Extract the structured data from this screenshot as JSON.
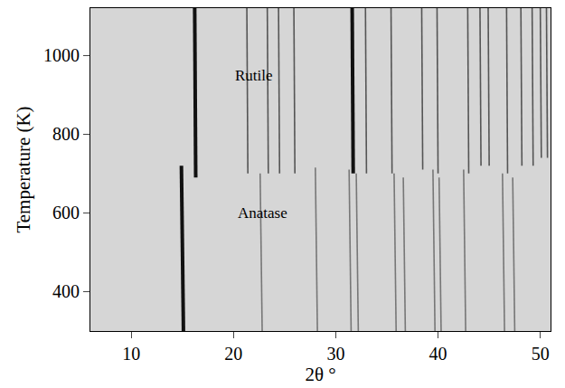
{
  "chart_data": {
    "type": "line",
    "x_label": "2θ °",
    "y_label": "Temperature (K)",
    "xlim": [
      6,
      51
    ],
    "xticks": [
      10,
      20,
      30,
      40,
      50
    ],
    "ylim": [
      300,
      1120
    ],
    "yticks": [
      400,
      600,
      800,
      1000
    ],
    "grid": false,
    "series": [
      {
        "color": "#111111",
        "line_style": "thick",
        "x": [
          15.1,
          14.9
        ],
        "values": [
          300,
          720
        ]
      },
      {
        "color": "#777777",
        "line_style": "thin",
        "x": [
          22.8,
          22.6,
          null,
          28.2,
          28.0,
          null,
          31.5,
          31.3,
          null,
          32.2,
          32.0,
          null,
          35.9,
          35.7,
          null,
          36.8,
          36.6,
          null,
          39.7,
          39.5,
          null,
          40.3,
          40.1,
          null,
          42.7,
          42.5,
          null,
          46.5,
          46.3,
          null,
          47.5,
          47.3
        ],
        "values": [
          300,
          700,
          null,
          300,
          715,
          null,
          300,
          710,
          null,
          300,
          700,
          null,
          300,
          700,
          null,
          300,
          690,
          null,
          300,
          710,
          null,
          300,
          690,
          null,
          300,
          710,
          null,
          300,
          700,
          null,
          300,
          690
        ]
      },
      {
        "color": "#111111",
        "line_style": "thick",
        "x": [
          16.3,
          16.2,
          null,
          31.7,
          31.6
        ],
        "values": [
          690,
          1120,
          null,
          700,
          1120
        ]
      },
      {
        "color": "#555555",
        "line_style": "thin",
        "x": [
          21.4,
          21.3,
          null,
          23.4,
          23.3,
          null,
          24.5,
          24.4,
          null,
          26.0,
          25.9,
          null,
          33.0,
          32.9,
          null,
          35.5,
          35.4,
          null,
          38.5,
          38.4,
          null,
          40.0,
          39.9,
          null,
          43.0,
          42.9,
          null,
          44.2,
          44.1,
          null,
          45.0,
          44.9,
          null,
          46.8,
          46.7,
          null,
          48.2,
          48.1,
          null,
          49.3,
          49.2,
          null,
          50.1,
          50.0,
          null,
          50.7,
          50.6
        ],
        "values": [
          700,
          1120,
          null,
          700,
          1120,
          null,
          700,
          1120,
          null,
          700,
          1120,
          null,
          700,
          1120,
          null,
          700,
          1120,
          null,
          710,
          1120,
          null,
          700,
          1120,
          null,
          700,
          1120,
          null,
          720,
          1120,
          null,
          720,
          1120,
          null,
          700,
          1120,
          null,
          720,
          1120,
          null,
          720,
          1120,
          null,
          740,
          1120,
          null,
          740,
          1120
        ]
      }
    ],
    "annotations": [
      {
        "text": "Rutile",
        "x": 22.0,
        "y": 950
      },
      {
        "text": "Anatase",
        "x": 22.8,
        "y": 600
      }
    ]
  }
}
